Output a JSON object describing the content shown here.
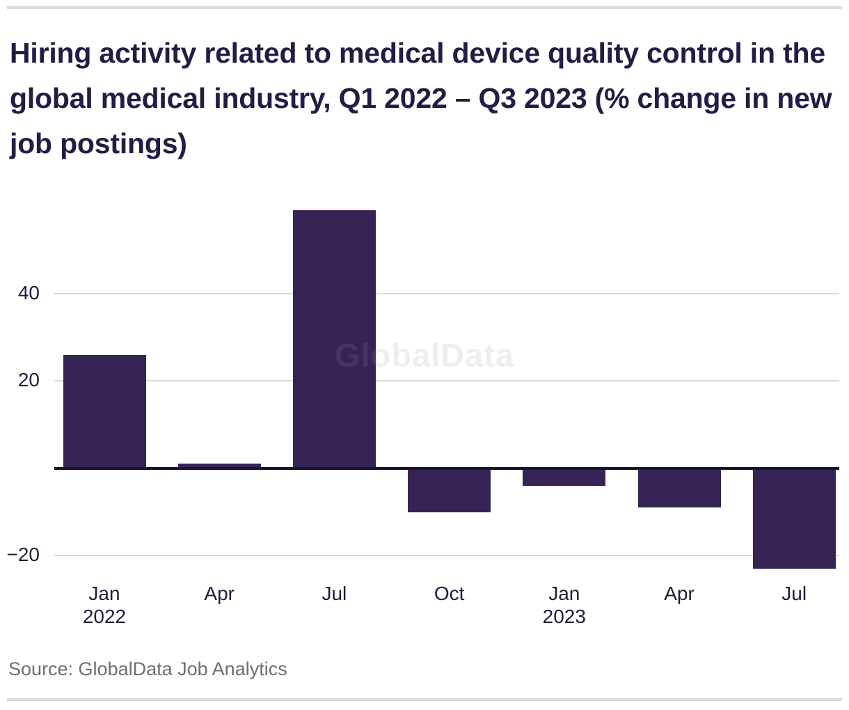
{
  "page": {
    "title": "Hiring activity related to medical device quality control in the global medical industry, Q1 2022 – Q3 2023 (% change in new job postings)",
    "source": "Source: GlobalData Job Analytics",
    "watermark": "GlobalData"
  },
  "colors": {
    "bar": "#362456",
    "ink": "#211d44",
    "tick_ink": "#1f1c3a",
    "grid": "#d8d8d8",
    "zero_line": "#161230",
    "page_rule": "#dcdcdc",
    "source_text": "#6e6e6e",
    "watermark": "rgba(150,150,150,0.16)"
  },
  "chart_data": {
    "type": "bar",
    "title": "Hiring activity related to medical device quality control in the global medical industry, Q1 2022 – Q3 2023 (% change in new job postings)",
    "xlabel": "",
    "ylabel": "% change in new job postings",
    "categories": [
      "Jan 2022",
      "Apr 2022",
      "Jul 2022",
      "Oct 2022",
      "Jan 2023",
      "Apr 2023",
      "Jul 2023"
    ],
    "values": [
      26,
      1,
      59,
      -10,
      -4,
      -9,
      -23
    ],
    "x_tick_labels": [
      {
        "line1": "Jan",
        "line2": "2022"
      },
      {
        "line1": "Apr",
        "line2": ""
      },
      {
        "line1": "Jul",
        "line2": ""
      },
      {
        "line1": "Oct",
        "line2": ""
      },
      {
        "line1": "Jan",
        "line2": "2023"
      },
      {
        "line1": "Apr",
        "line2": ""
      },
      {
        "line1": "Jul",
        "line2": ""
      }
    ],
    "y_ticks": [
      {
        "label": "40",
        "value": 40
      },
      {
        "label": "20",
        "value": 20
      },
      {
        "label": "−20",
        "value": -20
      }
    ],
    "ylim": [
      -24.4,
      60
    ],
    "grid": "horizontal-only",
    "legend": "none",
    "bar_color": "#362456",
    "source": "Source: GlobalData Job Analytics",
    "watermark": "GlobalData"
  }
}
